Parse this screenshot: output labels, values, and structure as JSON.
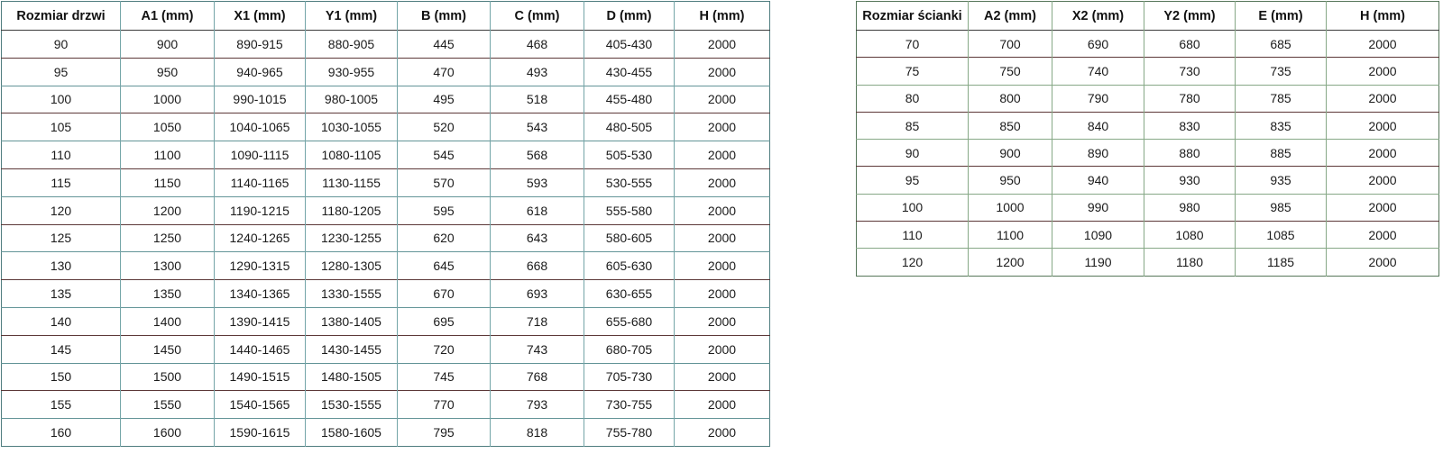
{
  "chart_data": [
    {
      "type": "table",
      "title": "Rozmiar drzwi",
      "columns": [
        "Rozmiar drzwi",
        "A1 (mm)",
        "X1 (mm)",
        "Y1 (mm)",
        "B (mm)",
        "C (mm)",
        "D (mm)",
        "H (mm)"
      ],
      "rows": [
        [
          "90",
          "900",
          "890-915",
          "880-905",
          "445",
          "468",
          "405-430",
          "2000"
        ],
        [
          "95",
          "950",
          "940-965",
          "930-955",
          "470",
          "493",
          "430-455",
          "2000"
        ],
        [
          "100",
          "1000",
          "990-1015",
          "980-1005",
          "495",
          "518",
          "455-480",
          "2000"
        ],
        [
          "105",
          "1050",
          "1040-1065",
          "1030-1055",
          "520",
          "543",
          "480-505",
          "2000"
        ],
        [
          "110",
          "1100",
          "1090-1115",
          "1080-1105",
          "545",
          "568",
          "505-530",
          "2000"
        ],
        [
          "115",
          "1150",
          "1140-1165",
          "1130-1155",
          "570",
          "593",
          "530-555",
          "2000"
        ],
        [
          "120",
          "1200",
          "1190-1215",
          "1180-1205",
          "595",
          "618",
          "555-580",
          "2000"
        ],
        [
          "125",
          "1250",
          "1240-1265",
          "1230-1255",
          "620",
          "643",
          "580-605",
          "2000"
        ],
        [
          "130",
          "1300",
          "1290-1315",
          "1280-1305",
          "645",
          "668",
          "605-630",
          "2000"
        ],
        [
          "135",
          "1350",
          "1340-1365",
          "1330-1555",
          "670",
          "693",
          "630-655",
          "2000"
        ],
        [
          "140",
          "1400",
          "1390-1415",
          "1380-1405",
          "695",
          "718",
          "655-680",
          "2000"
        ],
        [
          "145",
          "1450",
          "1440-1465",
          "1430-1455",
          "720",
          "743",
          "680-705",
          "2000"
        ],
        [
          "150",
          "1500",
          "1490-1515",
          "1480-1505",
          "745",
          "768",
          "705-730",
          "2000"
        ],
        [
          "155",
          "1550",
          "1540-1565",
          "1530-1555",
          "770",
          "793",
          "730-755",
          "2000"
        ],
        [
          "160",
          "1600",
          "1590-1615",
          "1580-1605",
          "795",
          "818",
          "755-780",
          "2000"
        ]
      ]
    },
    {
      "type": "table",
      "title": "Rozmiar ścianki",
      "columns": [
        "Rozmiar ścianki",
        "A2 (mm)",
        "X2 (mm)",
        "Y2 (mm)",
        "E (mm)",
        "H (mm)"
      ],
      "rows": [
        [
          "70",
          "700",
          "690",
          "680",
          "685",
          "2000"
        ],
        [
          "75",
          "750",
          "740",
          "730",
          "735",
          "2000"
        ],
        [
          "80",
          "800",
          "790",
          "780",
          "785",
          "2000"
        ],
        [
          "85",
          "850",
          "840",
          "830",
          "835",
          "2000"
        ],
        [
          "90",
          "900",
          "890",
          "880",
          "885",
          "2000"
        ],
        [
          "95",
          "950",
          "940",
          "930",
          "935",
          "2000"
        ],
        [
          "100",
          "1000",
          "990",
          "980",
          "985",
          "2000"
        ],
        [
          "110",
          "1100",
          "1090",
          "1080",
          "1085",
          "2000"
        ],
        [
          "120",
          "1200",
          "1190",
          "1180",
          "1185",
          "2000"
        ]
      ]
    }
  ],
  "colors": {
    "background": "#ffffff",
    "text": "#1b1b1b",
    "border_maroon": "#5c3838",
    "border_teal": "#639598",
    "border_green": "#86a886",
    "border_dark": "#3c3c3c"
  }
}
